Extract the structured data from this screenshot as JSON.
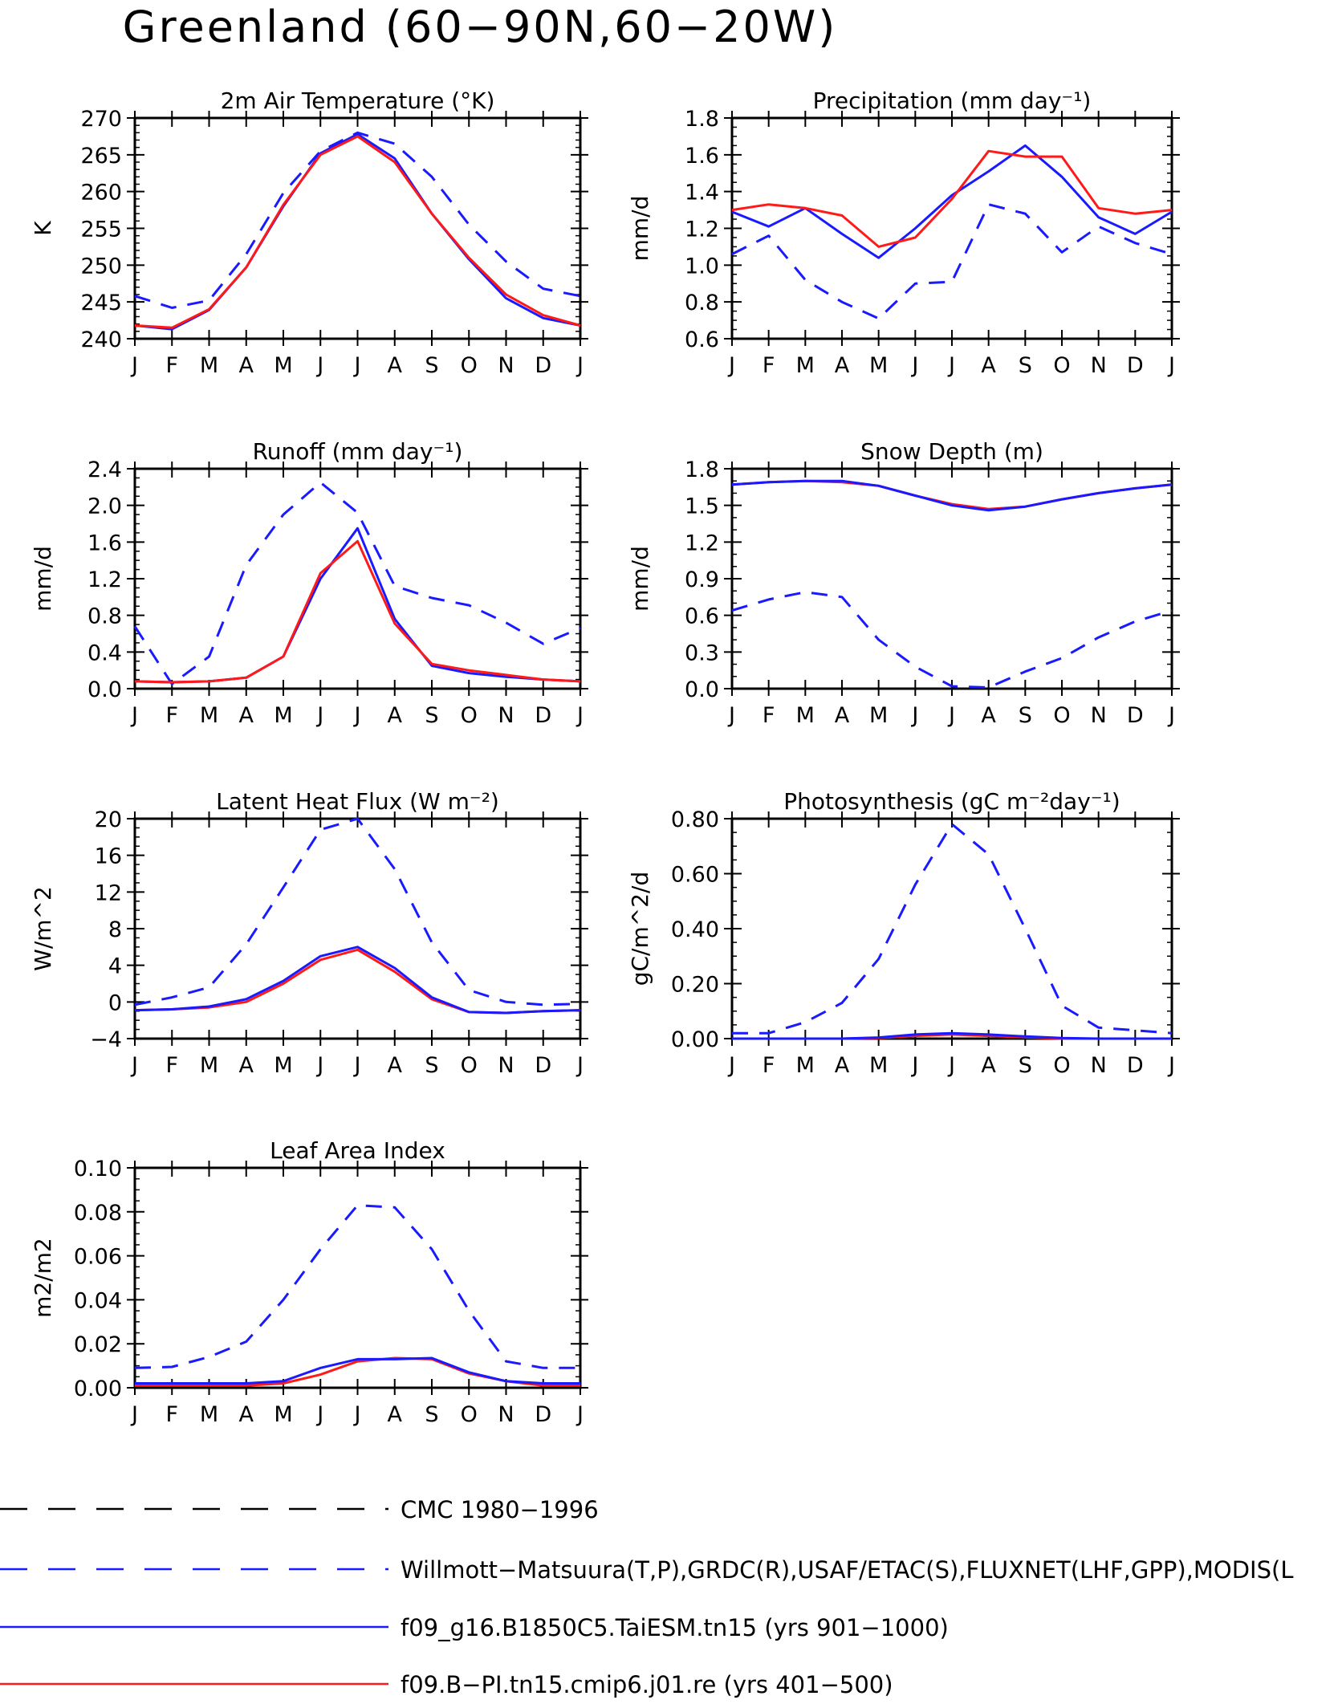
{
  "title": "Greenland (60−90N,60−20W)",
  "colors": {
    "model_blue": "#1a1aff",
    "model_red": "#ff1a1a",
    "black": "#000000"
  },
  "legend": [
    {
      "label": "CMC 1980−1996",
      "color": "#000000",
      "dash": true
    },
    {
      "label": "Willmott−Matsuura(T,P),GRDC(R),USAF/ETAC(S),FLUXNET(LHF,GPP),MODIS(L",
      "color": "#1a1aff",
      "dash": true
    },
    {
      "label": "f09_g16.B1850C5.TaiESM.tn15 (yrs 901−1000)",
      "color": "#1a1aff",
      "dash": false
    },
    {
      "label": "f09.B−PI.tn15.cmip6.j01.re (yrs 401−500)",
      "color": "#ff1a1a",
      "dash": false
    }
  ],
  "chart_data": [
    {
      "type": "line",
      "title": "2m Air Temperature (°K)",
      "ylabel": "K",
      "categories": [
        "J",
        "F",
        "M",
        "A",
        "M",
        "J",
        "J",
        "A",
        "S",
        "O",
        "N",
        "D",
        "J"
      ],
      "ylim": [
        240,
        270
      ],
      "yticks": [
        "240",
        "245",
        "250",
        "255",
        "260",
        "265",
        "270"
      ],
      "yminor": 1,
      "series": [
        {
          "color": "#1a1aff",
          "dash": true,
          "values": [
            245.8,
            244.2,
            245.2,
            251.5,
            259.8,
            265.5,
            268.0,
            266.5,
            262.0,
            255.5,
            250.5,
            246.8,
            245.8
          ]
        },
        {
          "color": "#1a1aff",
          "dash": false,
          "values": [
            241.8,
            241.3,
            243.9,
            249.7,
            258.0,
            265.2,
            267.8,
            264.5,
            257.0,
            250.8,
            245.5,
            242.8,
            241.8
          ]
        },
        {
          "color": "#ff1a1a",
          "dash": false,
          "values": [
            241.8,
            241.5,
            244.0,
            249.7,
            258.2,
            265.0,
            267.5,
            264.0,
            257.0,
            251.0,
            246.0,
            243.2,
            241.8
          ]
        }
      ]
    },
    {
      "type": "line",
      "title": "Precipitation (mm day⁻¹)",
      "ylabel": "mm/d",
      "categories": [
        "J",
        "F",
        "M",
        "A",
        "M",
        "J",
        "J",
        "A",
        "S",
        "O",
        "N",
        "D",
        "J"
      ],
      "ylim": [
        0.6,
        1.8
      ],
      "yticks": [
        "0.6",
        "0.8",
        "1.0",
        "1.2",
        "1.4",
        "1.6",
        "1.8"
      ],
      "yminor": 0.05,
      "series": [
        {
          "color": "#1a1aff",
          "dash": true,
          "values": [
            1.06,
            1.16,
            0.92,
            0.8,
            0.71,
            0.9,
            0.91,
            1.33,
            1.28,
            1.07,
            1.21,
            1.12,
            1.06
          ]
        },
        {
          "color": "#1a1aff",
          "dash": false,
          "values": [
            1.29,
            1.21,
            1.31,
            1.17,
            1.04,
            1.2,
            1.38,
            1.51,
            1.65,
            1.48,
            1.26,
            1.17,
            1.29
          ]
        },
        {
          "color": "#ff1a1a",
          "dash": false,
          "values": [
            1.3,
            1.33,
            1.31,
            1.27,
            1.1,
            1.15,
            1.36,
            1.62,
            1.59,
            1.59,
            1.31,
            1.28,
            1.3
          ]
        }
      ]
    },
    {
      "type": "line",
      "title": "Runoff (mm day⁻¹)",
      "ylabel": "mm/d",
      "categories": [
        "J",
        "F",
        "M",
        "A",
        "M",
        "J",
        "J",
        "A",
        "S",
        "O",
        "N",
        "D",
        "J"
      ],
      "ylim": [
        0,
        2.4
      ],
      "yticks": [
        "0.0",
        "0.4",
        "0.8",
        "1.2",
        "1.6",
        "2.0",
        "2.4"
      ],
      "yminor": 0.1,
      "series": [
        {
          "color": "#1a1aff",
          "dash": true,
          "values": [
            0.68,
            0.05,
            0.35,
            1.35,
            1.9,
            2.25,
            1.92,
            1.12,
            0.99,
            0.91,
            0.72,
            0.49,
            0.66
          ]
        },
        {
          "color": "#1a1aff",
          "dash": false,
          "values": [
            0.08,
            0.07,
            0.08,
            0.12,
            0.35,
            1.2,
            1.75,
            0.76,
            0.25,
            0.17,
            0.13,
            0.1,
            0.08
          ]
        },
        {
          "color": "#ff1a1a",
          "dash": false,
          "values": [
            0.08,
            0.07,
            0.08,
            0.12,
            0.35,
            1.26,
            1.61,
            0.71,
            0.27,
            0.2,
            0.15,
            0.1,
            0.08
          ]
        }
      ]
    },
    {
      "type": "line",
      "title": "Snow Depth (m)",
      "ylabel": "mm/d",
      "categories": [
        "J",
        "F",
        "M",
        "A",
        "M",
        "J",
        "J",
        "A",
        "S",
        "O",
        "N",
        "D",
        "J"
      ],
      "ylim": [
        0,
        1.8
      ],
      "yticks": [
        "0.0",
        "0.3",
        "0.6",
        "0.9",
        "1.2",
        "1.5",
        "1.8"
      ],
      "yminor": 0.1,
      "series": [
        {
          "color": "#000000",
          "dash": true,
          "values": [
            0,
            0,
            0,
            0,
            0,
            0,
            0,
            0,
            0,
            0,
            0,
            0,
            0
          ]
        },
        {
          "color": "#1a1aff",
          "dash": true,
          "values": [
            0.64,
            0.73,
            0.79,
            0.75,
            0.4,
            0.18,
            0.02,
            0.01,
            0.14,
            0.25,
            0.42,
            0.55,
            0.64
          ]
        },
        {
          "color": "#ff1a1a",
          "dash": false,
          "values": [
            1.67,
            1.69,
            1.7,
            1.69,
            1.66,
            1.58,
            1.51,
            1.47,
            1.49,
            1.55,
            1.6,
            1.64,
            1.67
          ]
        },
        {
          "color": "#1a1aff",
          "dash": false,
          "values": [
            1.67,
            1.69,
            1.7,
            1.7,
            1.66,
            1.58,
            1.5,
            1.46,
            1.49,
            1.55,
            1.6,
            1.64,
            1.67
          ]
        }
      ]
    },
    {
      "type": "line",
      "title": "Latent Heat Flux (W m⁻²)",
      "ylabel": "W/m^2",
      "categories": [
        "J",
        "F",
        "M",
        "A",
        "M",
        "J",
        "J",
        "A",
        "S",
        "O",
        "N",
        "D",
        "J"
      ],
      "ylim": [
        -4,
        20
      ],
      "yticks": [
        "−4",
        "0",
        "4",
        "8",
        "12",
        "16",
        "20"
      ],
      "yminor": 1,
      "series": [
        {
          "color": "#1a1aff",
          "dash": true,
          "values": [
            -0.3,
            0.5,
            1.6,
            6.3,
            12.5,
            18.8,
            20.0,
            14.5,
            6.5,
            1.3,
            0.0,
            -0.3,
            -0.2
          ]
        },
        {
          "color": "#ff1a1a",
          "dash": false,
          "values": [
            -0.9,
            -0.8,
            -0.6,
            0.0,
            2.0,
            4.6,
            5.7,
            3.3,
            0.3,
            -1.1,
            -1.2,
            -1.0,
            -0.9
          ]
        },
        {
          "color": "#1a1aff",
          "dash": false,
          "values": [
            -0.9,
            -0.8,
            -0.5,
            0.3,
            2.3,
            5.0,
            6.0,
            3.7,
            0.5,
            -1.1,
            -1.2,
            -1.0,
            -0.9
          ]
        }
      ]
    },
    {
      "type": "line",
      "title": "Photosynthesis (gC m⁻²day⁻¹)",
      "ylabel": "gC/m^2/d",
      "categories": [
        "J",
        "F",
        "M",
        "A",
        "M",
        "J",
        "J",
        "A",
        "S",
        "O",
        "N",
        "D",
        "J"
      ],
      "ylim": [
        0,
        0.8
      ],
      "yticks": [
        "0.00",
        "0.20",
        "0.40",
        "0.60",
        "0.80"
      ],
      "yminor": 0.05,
      "series": [
        {
          "color": "#1a1aff",
          "dash": true,
          "values": [
            0.02,
            0.02,
            0.06,
            0.13,
            0.29,
            0.56,
            0.78,
            0.67,
            0.4,
            0.12,
            0.04,
            0.03,
            0.02
          ]
        },
        {
          "color": "#ff1a1a",
          "dash": false,
          "values": [
            0.0,
            0.0,
            0.0,
            0.0,
            0.002,
            0.01,
            0.015,
            0.01,
            0.005,
            0.0,
            0.0,
            0.0,
            0.0
          ]
        },
        {
          "color": "#1a1aff",
          "dash": false,
          "values": [
            0.0,
            0.0,
            0.0,
            0.0,
            0.004,
            0.015,
            0.02,
            0.015,
            0.008,
            0.002,
            0.0,
            0.0,
            0.0
          ]
        }
      ]
    },
    {
      "type": "line",
      "title": "Leaf Area Index",
      "ylabel": "m2/m2",
      "categories": [
        "J",
        "F",
        "M",
        "A",
        "M",
        "J",
        "J",
        "A",
        "S",
        "O",
        "N",
        "D",
        "J"
      ],
      "ylim": [
        0,
        0.1
      ],
      "yticks": [
        "0.00",
        "0.02",
        "0.04",
        "0.06",
        "0.08",
        "0.10"
      ],
      "yminor": 0.005,
      "series": [
        {
          "color": "#1a1aff",
          "dash": true,
          "values": [
            0.009,
            0.0095,
            0.014,
            0.021,
            0.04,
            0.063,
            0.083,
            0.082,
            0.063,
            0.035,
            0.012,
            0.009,
            0.009
          ]
        },
        {
          "color": "#ff1a1a",
          "dash": false,
          "values": [
            0.001,
            0.001,
            0.001,
            0.001,
            0.002,
            0.006,
            0.012,
            0.0135,
            0.013,
            0.0065,
            0.003,
            0.001,
            0.001
          ]
        },
        {
          "color": "#1a1aff",
          "dash": false,
          "values": [
            0.002,
            0.002,
            0.002,
            0.002,
            0.003,
            0.009,
            0.013,
            0.013,
            0.0135,
            0.007,
            0.003,
            0.002,
            0.002
          ]
        }
      ]
    }
  ]
}
